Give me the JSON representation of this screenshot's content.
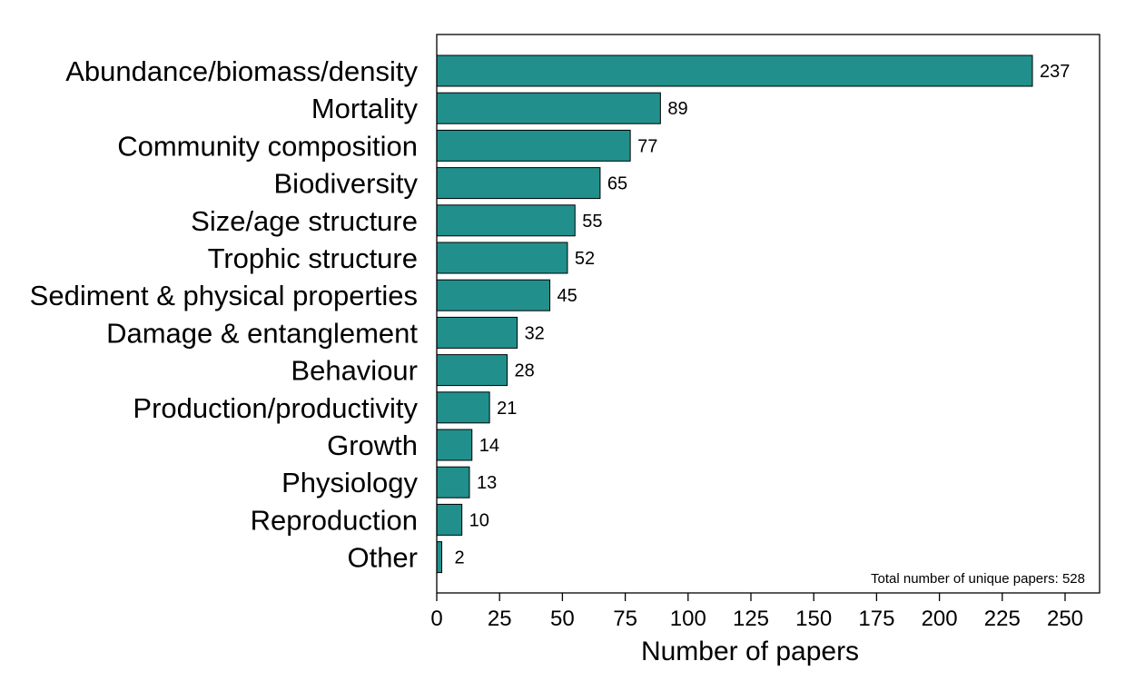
{
  "chart_data": {
    "type": "bar",
    "orientation": "horizontal",
    "categories": [
      "Abundance/biomass/density",
      "Mortality",
      "Community composition",
      "Biodiversity",
      "Size/age structure",
      "Trophic structure",
      "Sediment & physical properties",
      "Damage & entanglement",
      "Behaviour",
      "Production/productivity",
      "Growth",
      "Physiology",
      "Reproduction",
      "Other"
    ],
    "values": [
      237,
      89,
      77,
      65,
      55,
      52,
      45,
      32,
      28,
      21,
      14,
      13,
      10,
      2
    ],
    "title": "",
    "xlabel": "Number of papers",
    "ylabel": "",
    "xlim": [
      0,
      265
    ],
    "xticks": [
      0,
      25,
      50,
      75,
      100,
      125,
      150,
      175,
      200,
      225,
      250
    ],
    "annotation": "Total number of unique papers: 528",
    "bar_color": "#21908C",
    "grid": false,
    "legend": "none"
  }
}
